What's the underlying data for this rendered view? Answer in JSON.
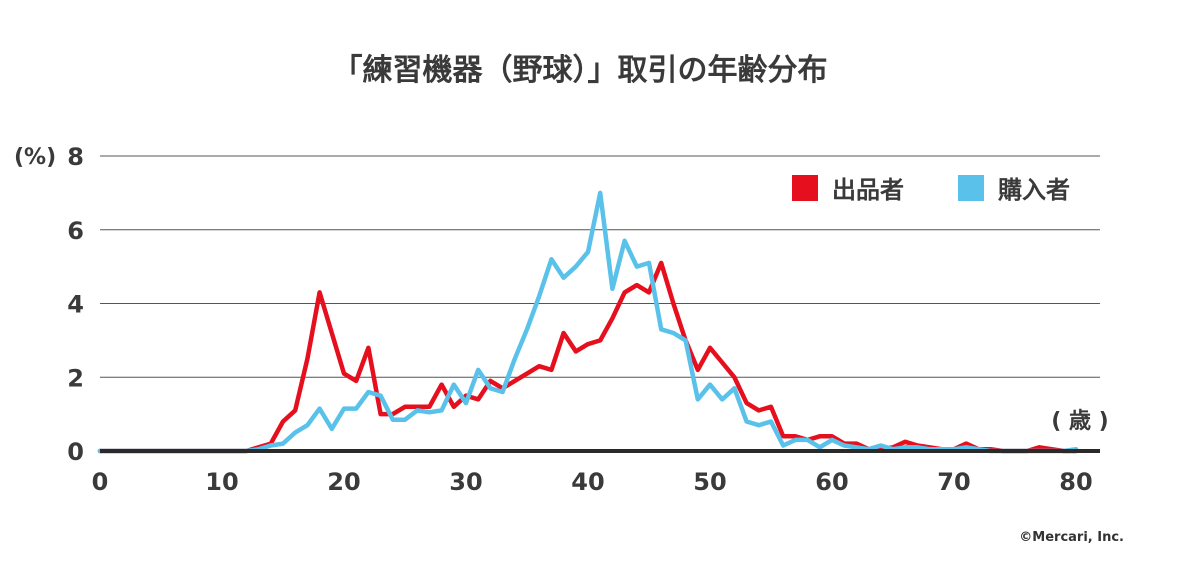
{
  "chart_data": {
    "type": "line",
    "title": "「練習機器（野球）」取引の年齢分布",
    "ylabel": "(%)",
    "xlabel": "( 歳 )",
    "xlim": [
      0,
      80
    ],
    "ylim": [
      0,
      8
    ],
    "x_ticks": [
      0,
      10,
      20,
      30,
      40,
      50,
      60,
      70,
      80
    ],
    "y_ticks": [
      0,
      2,
      4,
      6,
      8
    ],
    "grid": true,
    "legend_position": "top-right",
    "x": [
      0,
      1,
      2,
      3,
      4,
      5,
      6,
      7,
      8,
      9,
      10,
      11,
      12,
      13,
      14,
      15,
      16,
      17,
      18,
      19,
      20,
      21,
      22,
      23,
      24,
      25,
      26,
      27,
      28,
      29,
      30,
      31,
      32,
      33,
      34,
      35,
      36,
      37,
      38,
      39,
      40,
      41,
      42,
      43,
      44,
      45,
      46,
      47,
      48,
      49,
      50,
      51,
      52,
      53,
      54,
      55,
      56,
      57,
      58,
      59,
      60,
      61,
      62,
      63,
      64,
      65,
      66,
      67,
      68,
      69,
      70,
      71,
      72,
      73,
      74,
      75,
      76,
      77,
      78,
      79,
      80
    ],
    "series": [
      {
        "name": "出品者",
        "color": "#e60f1e",
        "values": [
          0,
          0,
          0,
          0,
          0,
          0,
          0,
          0,
          0,
          0,
          0,
          0,
          0,
          0.1,
          0.2,
          0.8,
          1.1,
          2.5,
          4.3,
          3.2,
          2.1,
          1.9,
          2.8,
          1.0,
          1.0,
          1.2,
          1.2,
          1.2,
          1.8,
          1.2,
          1.5,
          1.4,
          1.9,
          1.7,
          1.9,
          2.1,
          2.3,
          2.2,
          3.2,
          2.7,
          2.9,
          3.0,
          3.6,
          4.3,
          4.5,
          4.3,
          5.1,
          4.0,
          3.0,
          2.2,
          2.8,
          2.4,
          2.0,
          1.3,
          1.1,
          1.2,
          0.4,
          0.4,
          0.3,
          0.4,
          0.4,
          0.2,
          0.2,
          0.05,
          0.05,
          0.1,
          0.25,
          0.15,
          0.1,
          0.05,
          0.05,
          0.2,
          0.05,
          0.05,
          0,
          0,
          0,
          0.1,
          0.05,
          0,
          0
        ]
      },
      {
        "name": "購入者",
        "color": "#5ac2ea",
        "values": [
          0,
          0,
          0,
          0,
          0,
          0,
          0,
          0,
          0,
          0,
          0,
          0,
          0,
          0.05,
          0.15,
          0.2,
          0.5,
          0.7,
          1.15,
          0.6,
          1.15,
          1.15,
          1.6,
          1.5,
          0.85,
          0.85,
          1.1,
          1.05,
          1.1,
          1.8,
          1.3,
          2.2,
          1.7,
          1.6,
          2.5,
          3.3,
          4.2,
          5.2,
          4.7,
          5.0,
          5.4,
          7.0,
          4.4,
          5.7,
          5.0,
          5.1,
          3.3,
          3.2,
          3.0,
          1.4,
          1.8,
          1.4,
          1.7,
          0.8,
          0.7,
          0.8,
          0.15,
          0.3,
          0.3,
          0.1,
          0.3,
          0.15,
          0.1,
          0.05,
          0.15,
          0.05,
          0.1,
          0.1,
          0.05,
          0.05,
          0.05,
          0.1,
          0.05,
          0,
          0,
          0,
          0,
          0,
          0,
          0,
          0.05
        ]
      }
    ]
  },
  "credit": "©Mercari, Inc."
}
